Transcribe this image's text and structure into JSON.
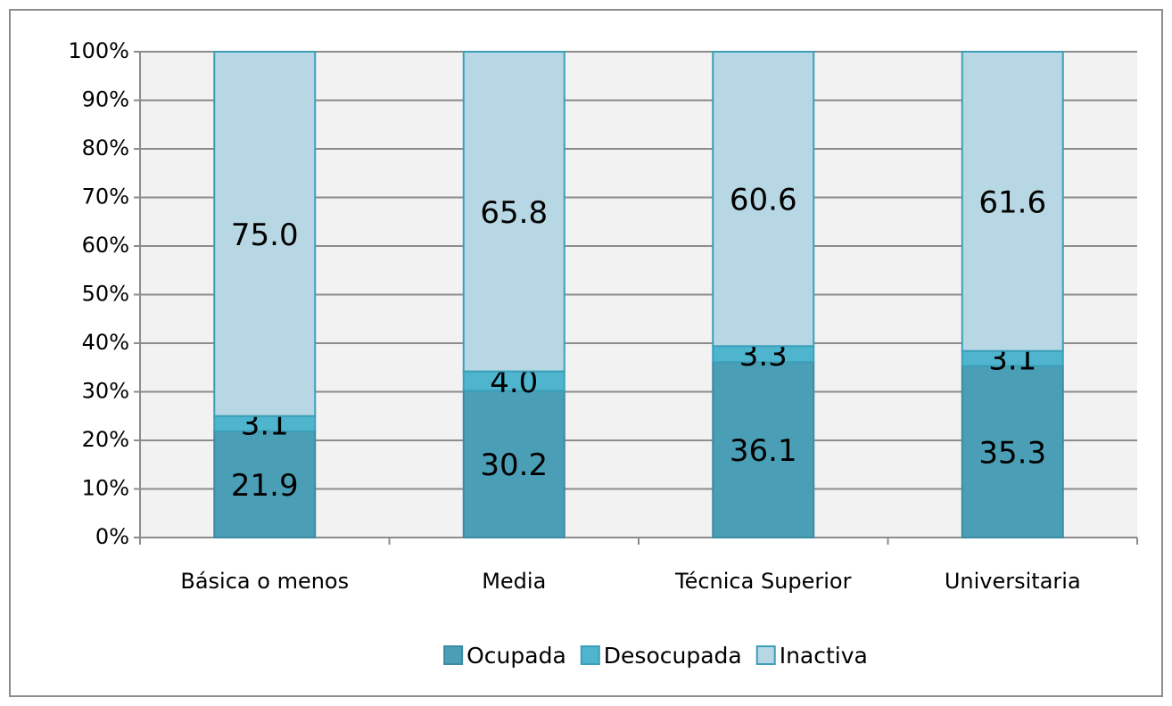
{
  "chart_data": {
    "type": "stacked-bar",
    "categories": [
      "Básica o menos",
      "Media",
      "Técnica Superior",
      "Universitaria"
    ],
    "series": [
      {
        "name": "Ocupada",
        "color": "#4a9fb7",
        "values": [
          21.9,
          30.2,
          36.1,
          35.3
        ],
        "value_labels": [
          "21.9",
          "30.2",
          "36.1",
          "35.3"
        ]
      },
      {
        "name": "Desocupada",
        "color": "#4fb5cf",
        "values": [
          3.1,
          4.0,
          3.3,
          3.1
        ],
        "value_labels": [
          "3.1",
          "4.0",
          "3.3",
          "3.1"
        ]
      },
      {
        "name": "Inactiva",
        "color": "#b6d7e3",
        "values": [
          75.0,
          65.8,
          60.6,
          61.6
        ],
        "value_labels": [
          "75.0",
          "65.8",
          "60.6",
          "61.6"
        ]
      }
    ],
    "ylim": [
      0,
      100
    ],
    "yticks": [
      {
        "value": 0,
        "label": "0%"
      },
      {
        "value": 10,
        "label": "10%"
      },
      {
        "value": 20,
        "label": "20%"
      },
      {
        "value": 30,
        "label": "30%"
      },
      {
        "value": 40,
        "label": "40%"
      },
      {
        "value": 50,
        "label": "50%"
      },
      {
        "value": 60,
        "label": "60%"
      },
      {
        "value": 70,
        "label": "70%"
      },
      {
        "value": 80,
        "label": "80%"
      },
      {
        "value": 90,
        "label": "90%"
      },
      {
        "value": 100,
        "label": "100%"
      }
    ],
    "grid": true,
    "legend": "bottom"
  }
}
